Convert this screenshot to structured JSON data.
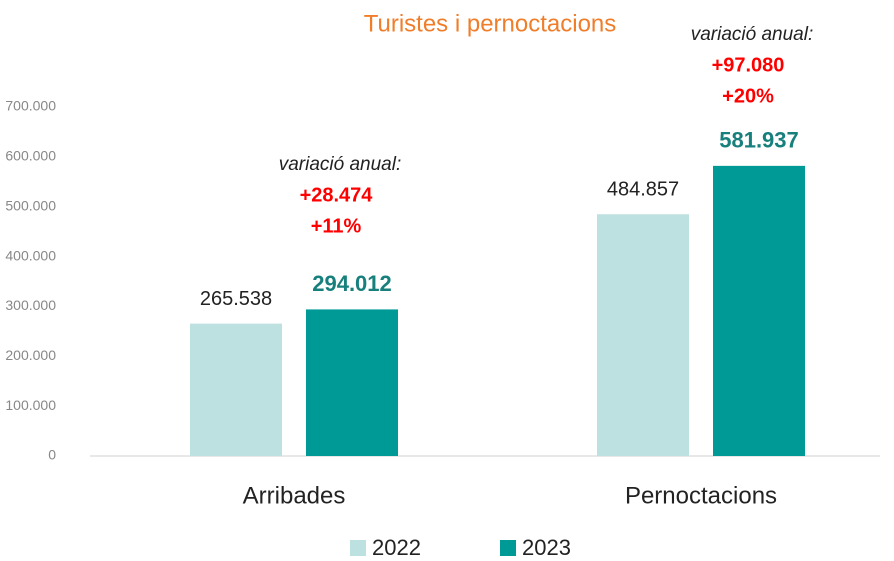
{
  "chart_data": {
    "type": "bar",
    "title": "Turistes i pernoctacions",
    "categories": [
      "Arribades",
      "Pernoctacions"
    ],
    "series": [
      {
        "name": "2022",
        "color": "#bde0e0",
        "values": [
          265538,
          484857
        ],
        "value_labels": [
          "265.538",
          "484.857"
        ]
      },
      {
        "name": "2023",
        "color": "#009a96",
        "values": [
          294012,
          581937
        ],
        "value_labels": [
          "294.012",
          "581.937"
        ]
      }
    ],
    "ylim": [
      0,
      700000
    ],
    "yticks": [
      0,
      {
        "value": 100000,
        "label": "100.000"
      },
      {
        "value": 200000,
        "label": "200.000"
      },
      {
        "value": 300000,
        "label": "300.000"
      },
      {
        "value": 400000,
        "label": "400.000"
      },
      {
        "value": 500000,
        "label": "500.000"
      },
      {
        "value": 600000,
        "label": "600.000"
      },
      {
        "value": 700000,
        "label": "700.000"
      }
    ],
    "annotations": [
      {
        "heading": "variació anual:",
        "lines": [
          "+28.474",
          "+11%"
        ]
      },
      {
        "heading": "variació anual:",
        "lines": [
          "+97.080",
          "+20%"
        ]
      }
    ],
    "legend": "bottom"
  }
}
